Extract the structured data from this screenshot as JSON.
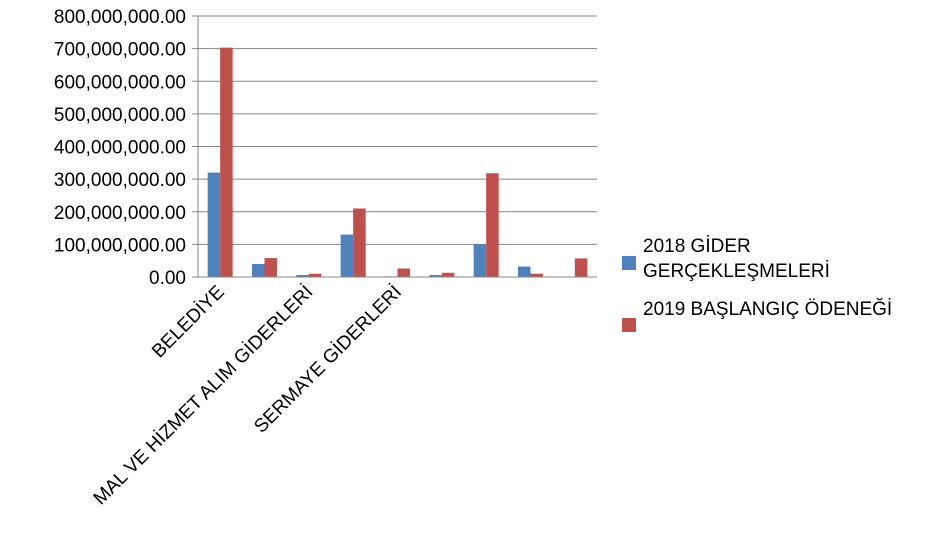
{
  "chart_data": {
    "type": "bar",
    "categories": [
      "BELEDİYE",
      "",
      "MAL VE HİZMET ALIM GİDERLERİ",
      "",
      "SERMAYE GİDERLERİ",
      "",
      "",
      "",
      ""
    ],
    "series": [
      {
        "name": "2018 GİDER GERÇEKLEŞMELERİ",
        "color": "#4f81bd",
        "values": [
          320000000,
          40000000,
          6000000,
          130000000,
          2000000,
          6000000,
          100000000,
          32000000,
          1000000
        ]
      },
      {
        "name": "2019 BAŞLANGIÇ ÖDENEĞİ",
        "color": "#c0504d",
        "values": [
          703000000,
          58000000,
          10000000,
          210000000,
          26000000,
          13000000,
          318000000,
          10000000,
          57000000
        ]
      }
    ],
    "ylim": [
      0,
      800000000
    ],
    "yticks": [
      "0.00",
      "100,000,000.00",
      "200,000,000.00",
      "300,000,000.00",
      "400,000,000.00",
      "500,000,000.00",
      "600,000,000.00",
      "700,000,000.00",
      "800,000,000.00"
    ],
    "grid": true,
    "legend_position": "right"
  }
}
